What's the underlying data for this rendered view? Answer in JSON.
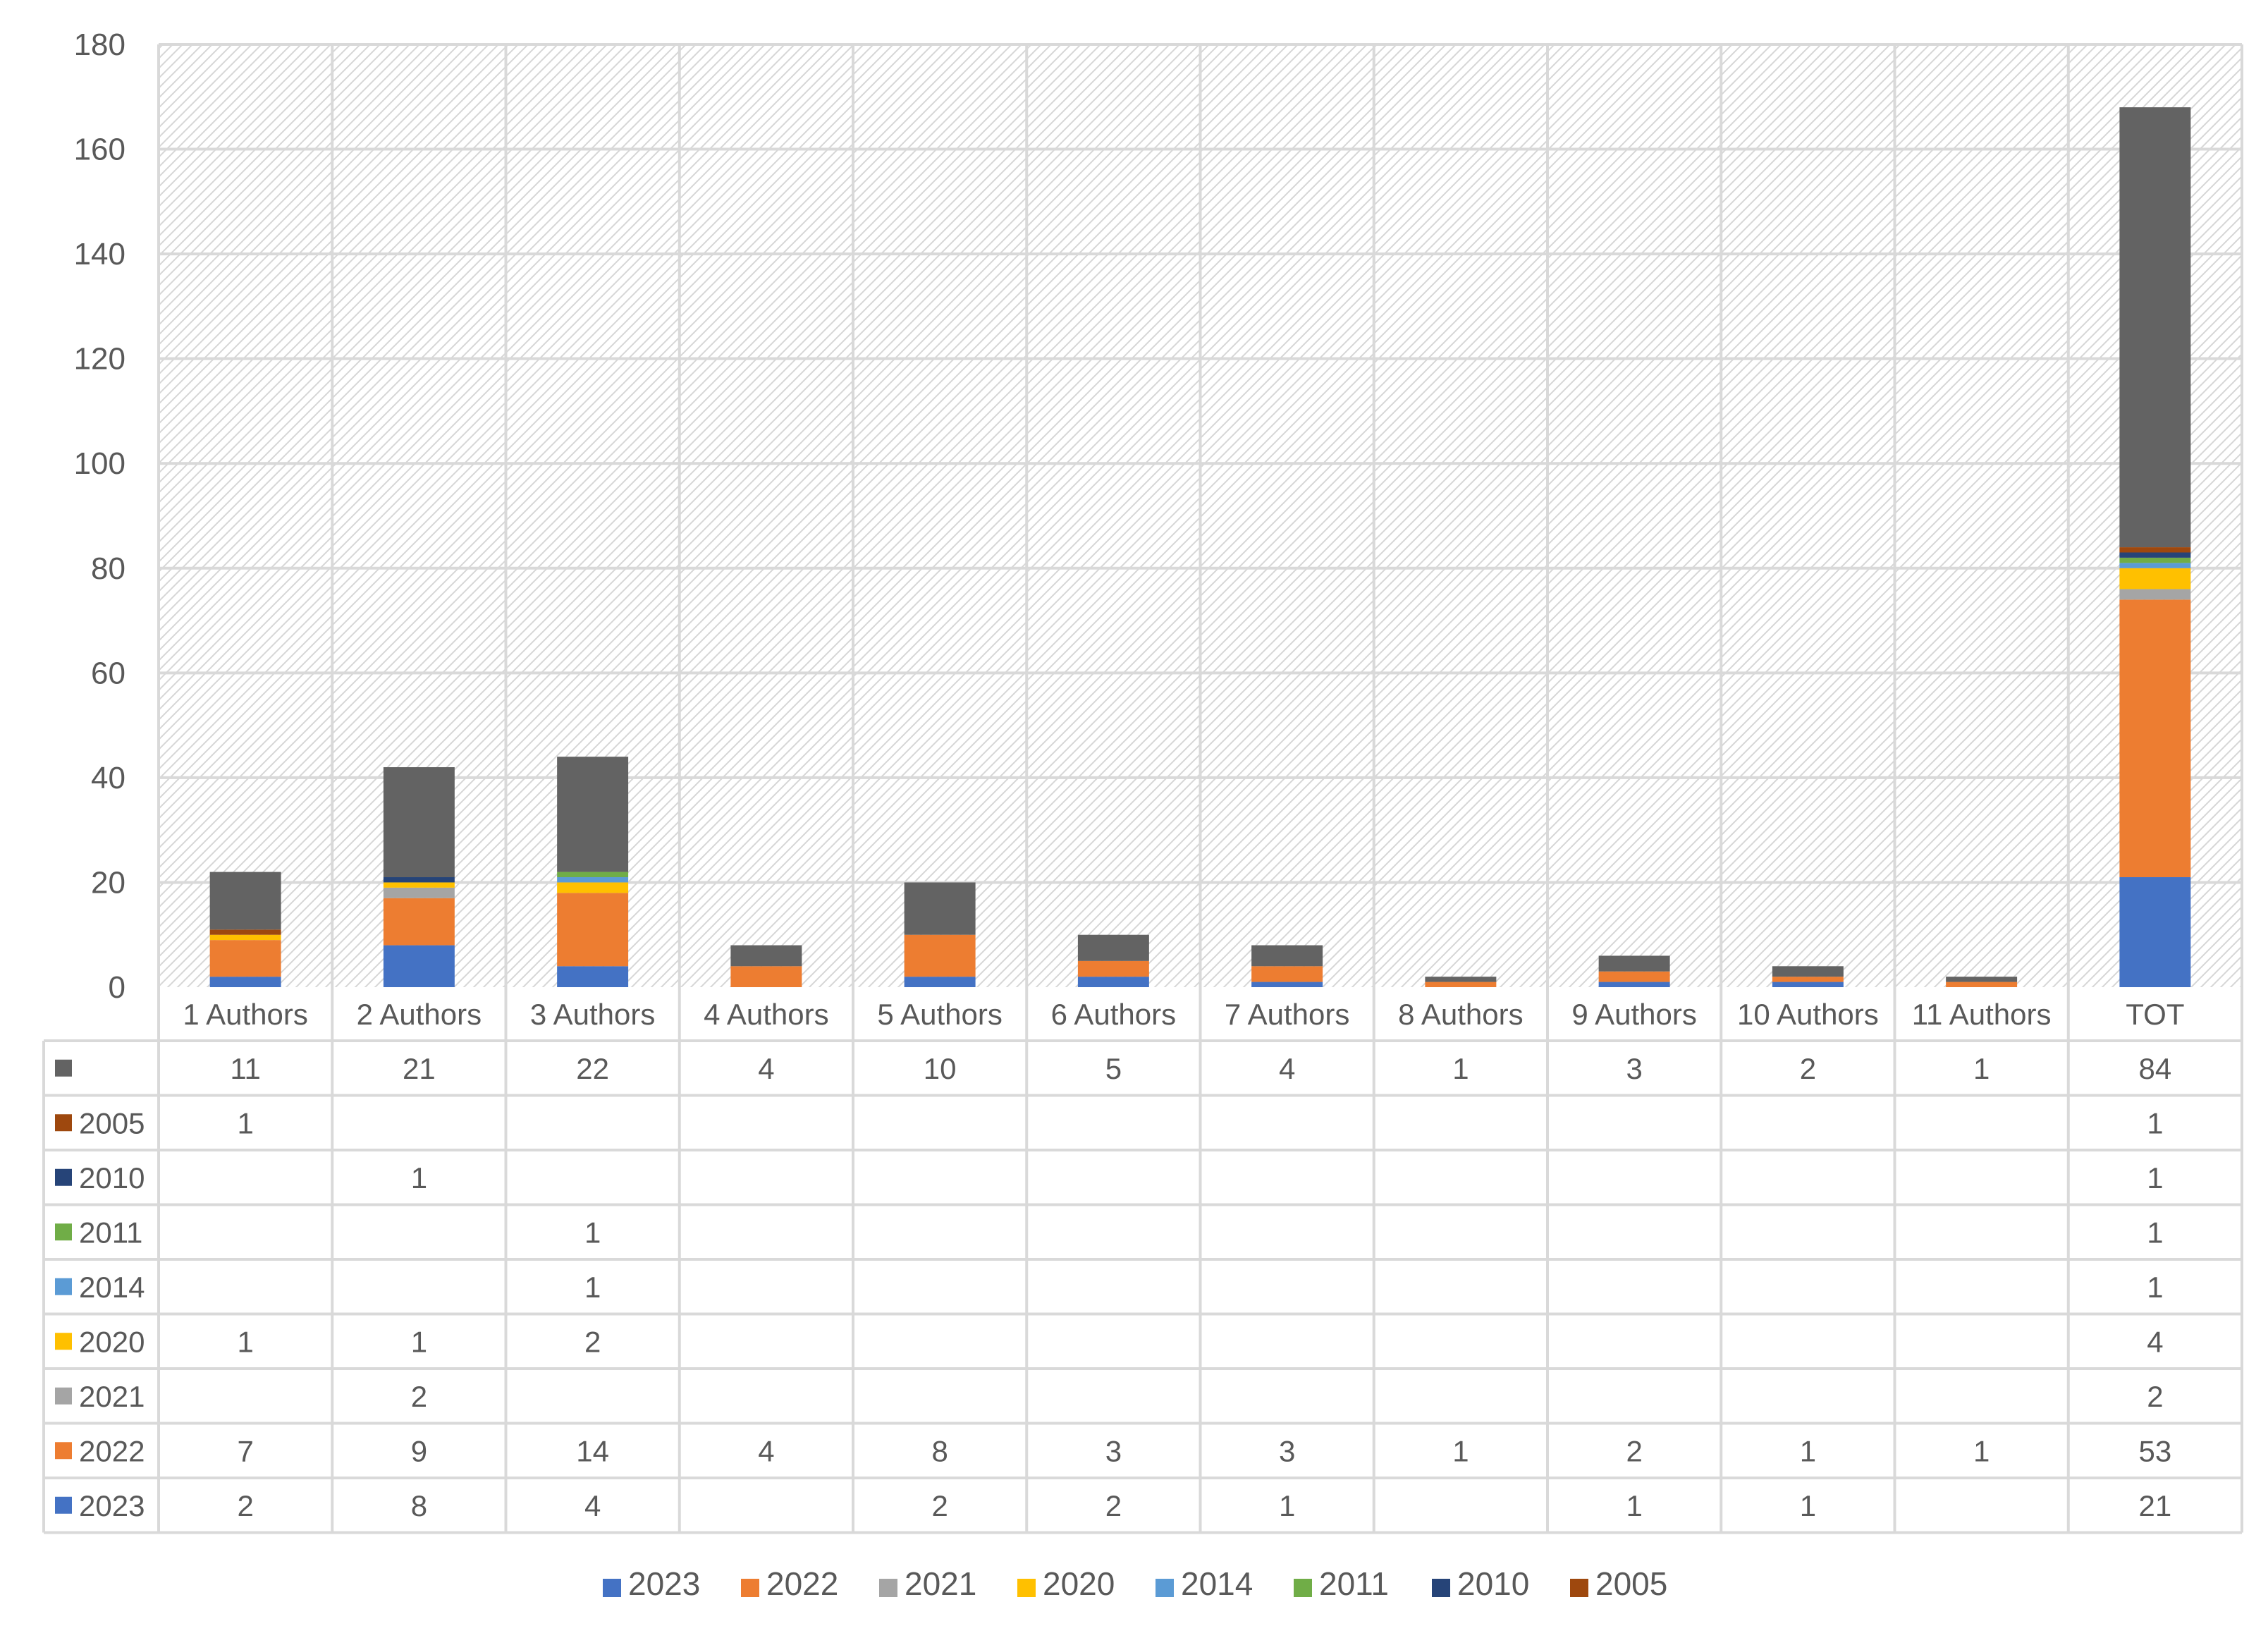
{
  "chart_data": {
    "type": "bar",
    "stacked": true,
    "categories": [
      "1 Authors",
      "2 Authors",
      "3 Authors",
      "4 Authors",
      "5 Authors",
      "6 Authors",
      "7 Authors",
      "8 Authors",
      "9 Authors",
      "10 Authors",
      "11 Authors",
      "TOT"
    ],
    "ylim": [
      0,
      180
    ],
    "yticks": [
      0,
      20,
      40,
      60,
      80,
      100,
      120,
      140,
      160,
      180
    ],
    "grid": true,
    "legend_position": "bottom",
    "series": [
      {
        "name": "2023",
        "color": "#4472C4",
        "values": [
          2,
          8,
          4,
          null,
          2,
          2,
          1,
          null,
          1,
          1,
          null,
          21
        ]
      },
      {
        "name": "2022",
        "color": "#ED7D31",
        "values": [
          7,
          9,
          14,
          4,
          8,
          3,
          3,
          1,
          2,
          1,
          1,
          53
        ]
      },
      {
        "name": "2021",
        "color": "#A5A5A5",
        "values": [
          null,
          2,
          null,
          null,
          null,
          null,
          null,
          null,
          null,
          null,
          null,
          2
        ]
      },
      {
        "name": "2020",
        "color": "#FFC000",
        "values": [
          1,
          1,
          2,
          null,
          null,
          null,
          null,
          null,
          null,
          null,
          null,
          4
        ]
      },
      {
        "name": "2014",
        "color": "#5B9BD5",
        "values": [
          null,
          null,
          1,
          null,
          null,
          null,
          null,
          null,
          null,
          null,
          null,
          1
        ]
      },
      {
        "name": "2011",
        "color": "#70AD47",
        "values": [
          null,
          null,
          1,
          null,
          null,
          null,
          null,
          null,
          null,
          null,
          null,
          1
        ]
      },
      {
        "name": "2010",
        "color": "#264478",
        "values": [
          null,
          1,
          null,
          null,
          null,
          null,
          null,
          null,
          null,
          null,
          null,
          1
        ]
      },
      {
        "name": "2005",
        "color": "#9E480E",
        "values": [
          1,
          null,
          null,
          null,
          null,
          null,
          null,
          null,
          null,
          null,
          null,
          1
        ]
      },
      {
        "name": "",
        "color": "#636363",
        "values": [
          11,
          21,
          22,
          4,
          10,
          5,
          4,
          1,
          3,
          2,
          1,
          84
        ]
      }
    ],
    "table_row_order": [
      "",
      "2005",
      "2010",
      "2011",
      "2014",
      "2020",
      "2021",
      "2022",
      "2023"
    ],
    "legend_order": [
      "2023",
      "2022",
      "2021",
      "2020",
      "2014",
      "2011",
      "2010",
      "2005"
    ]
  }
}
